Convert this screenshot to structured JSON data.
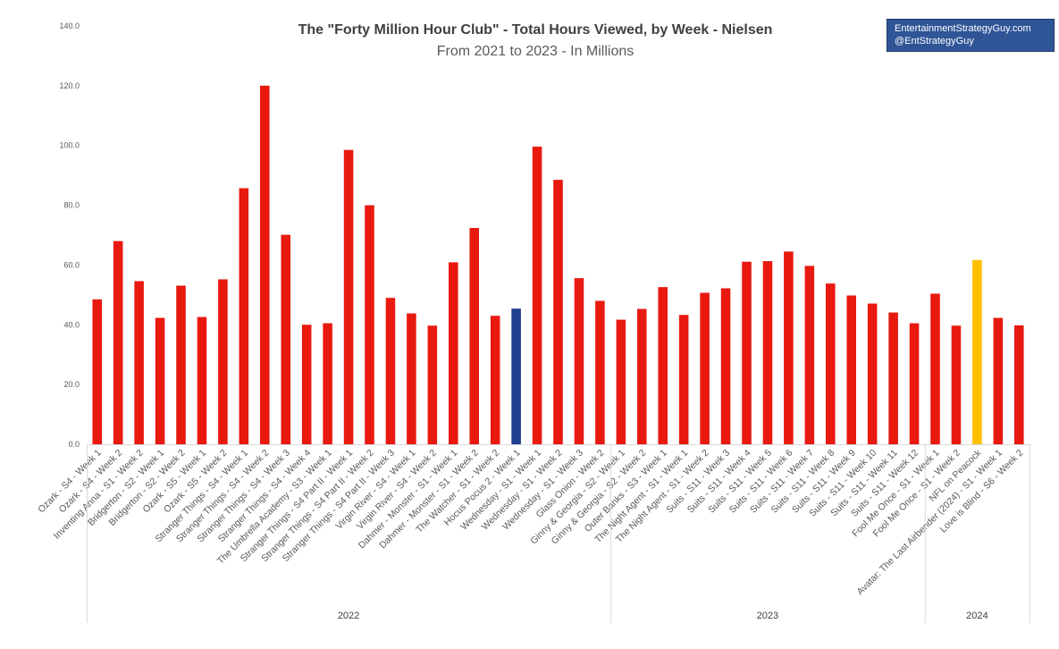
{
  "credit": {
    "line1": "EntertainmentStrategyGuy.com",
    "line2": "@EntStrategyGuy"
  },
  "chart_data": {
    "type": "bar",
    "title": "The \"Forty Million Hour Club\" - Total Hours Viewed, by Week - Nielsen",
    "subtitle": "From 2021 to 2023 - In Millions",
    "xlabel": "",
    "ylabel": "",
    "ylim": [
      0,
      140
    ],
    "yticks": [
      "0.0",
      "20.0",
      "40.0",
      "60.0",
      "80.0",
      "100.0",
      "120.0",
      "140.0"
    ],
    "grid": false,
    "legend": "none",
    "categories": [
      "Ozark - S4 - Week 1",
      "Ozark - S4 - Week 2",
      "Inventing Anna - S1 - Week 2",
      "Bridgerton - S2 - Week 1",
      "Bridgerton - S2 - Week 2",
      "Ozark - S5 - Week 1",
      "Ozark - S5 - Week 2",
      "Stranger Things - S4 - Week 1",
      "Stranger Things - S4 - Week 2",
      "Stranger Things - S4 - Week 3",
      "Stranger Things - S4 - Week 4",
      "The Umbrella Academy - S3 - Week 1",
      "Stranger Things - S4 Part II - Week 1",
      "Stranger Things - S4 Part II - Week 2",
      "Stranger Things - S4 Part II - Week 3",
      "Virgin River - S4 - Week 1",
      "Virgin River - S4 - Week 2",
      "Dahmer - Monster - S1 - Week 1",
      "Dahmer - Monster - S1 - Week 2",
      "The Watcher - S1 - Week 2",
      "Hocus Pocus 2 - Week 1",
      "Wednesday - S1 - Week 1",
      "Wednesday - S1 - Week 2",
      "Wednesday - S1 - Week 3",
      "Glass Onion - Week 2",
      "Ginny & Georgia - S2 - Week 1",
      "Ginny & Georgia - S2 - Week 2",
      "Outer Banks - S3 - Week 1",
      "The Night Agent - S1 - Week 1",
      "The Night Agent - S1 - Week 2",
      "Suits - S11 - Week 3",
      "Suits - S11 - Week 4",
      "Suits - S11 - Week 5",
      "Suits - S11 - Week 6",
      "Suits - S11 - Week 7",
      "Suits - S11 - Week 8",
      "Suits - S11 - Week 9",
      "Suits - S11 - Week 10",
      "Suits - S11 - Week 11",
      "Suits - S11 - Week 12",
      "Fool Me Once - S1 - Week 1",
      "Fool Me Once - S1 - Week 2",
      "NFL on Peacock",
      "Avatar: The Last Airbender (2024) - S1 - Week 1",
      "Love is Blind - S6 - Week 2"
    ],
    "values": [
      48.5,
      68.0,
      54.6,
      42.3,
      53.1,
      42.6,
      55.2,
      85.7,
      120.0,
      70.1,
      40.0,
      40.5,
      98.5,
      80.0,
      49.0,
      43.8,
      39.7,
      60.9,
      72.4,
      43.0,
      45.4,
      99.6,
      88.5,
      55.6,
      48.0,
      41.7,
      45.3,
      52.6,
      43.3,
      50.7,
      52.2,
      61.1,
      61.3,
      64.5,
      59.7,
      53.8,
      49.8,
      47.1,
      44.1,
      40.5,
      50.4,
      39.7,
      61.7,
      42.3,
      39.8
    ],
    "colors": {
      "default": "#e8190f",
      "highlight_blue": "#1f3f8f",
      "highlight_gold": "#ffc000"
    },
    "highlight_indices": {
      "20": "highlight_blue",
      "42": "highlight_gold"
    },
    "groups": [
      {
        "label": "2022",
        "start": 0,
        "end": 24
      },
      {
        "label": "2023",
        "start": 25,
        "end": 39
      },
      {
        "label": "2024",
        "start": 40,
        "end": 44
      }
    ]
  }
}
